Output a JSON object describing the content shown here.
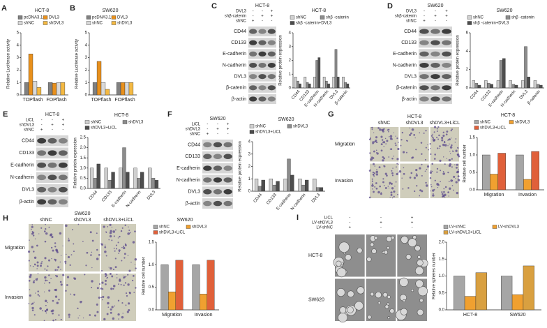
{
  "panels": [
    {
      "letter": "A"
    },
    {
      "letter": "B"
    },
    {
      "letter": "C",
      "title": "HCT-8",
      "conditions": [
        {
          "name": "DVL3",
          "signs": [
            "-",
            "-",
            "+"
          ]
        },
        {
          "name": "shβ-catenin",
          "signs": [
            "-",
            "+",
            "+"
          ]
        },
        {
          "name": "shNC",
          "signs": [
            "+",
            "-",
            "-"
          ]
        }
      ],
      "bands": [
        "CD44",
        "CD133",
        "E-cadherin",
        "N-cadherin",
        "DVL3",
        "β-catenin",
        "β-actin"
      ]
    },
    {
      "letter": "D",
      "title": "SW620",
      "conditions": [
        {
          "name": "DVL3",
          "signs": [
            "-",
            "-",
            "+"
          ]
        },
        {
          "name": "shβ-catenin",
          "signs": [
            "-",
            "+",
            "+"
          ]
        },
        {
          "name": "shNC",
          "signs": [
            "+",
            "-",
            "-"
          ]
        }
      ],
      "bands": [
        "CD44",
        "CD133",
        "E-cadherin",
        "N-cadherin",
        "DVL3",
        "β-catenin",
        "β-actin"
      ]
    },
    {
      "letter": "E",
      "title": "HCT-8",
      "conditions": [
        {
          "name": "LiCL",
          "signs": [
            "-",
            "-",
            "+"
          ]
        },
        {
          "name": "shDVL3",
          "signs": [
            "-",
            "+",
            "+"
          ]
        },
        {
          "name": "shNC",
          "signs": [
            "+",
            "-",
            "-"
          ]
        }
      ],
      "bands": [
        "CD44",
        "CD133",
        "E-cadherin",
        "N-cadherin",
        "DVL3",
        "β-actin"
      ]
    },
    {
      "letter": "F",
      "title": "SW620",
      "conditions": [
        {
          "name": "LiCL",
          "signs": [
            "-",
            "-",
            "+"
          ]
        },
        {
          "name": "shDVL3",
          "signs": [
            "-",
            "+",
            "+"
          ]
        },
        {
          "name": "shNC",
          "signs": [
            "+",
            "-",
            "-"
          ]
        }
      ],
      "bands": [
        "CD44",
        "CD133",
        "E-cadherin",
        "N-cadherin",
        "DVL3",
        "β-actin"
      ]
    },
    {
      "letter": "G",
      "title": "HCT-8",
      "columns": [
        "shNC",
        "shDVL3",
        "shDVL3+LiCL"
      ],
      "rows": [
        "Migration",
        "Invasion"
      ]
    },
    {
      "letter": "H",
      "title": "SW620",
      "columns": [
        "shNC",
        "shDVL3",
        "shDVL3+LiCL"
      ],
      "rows": [
        "Migration",
        "Invasion"
      ]
    },
    {
      "letter": "I",
      "conditions": [
        {
          "name": "LiCL",
          "signs": [
            "-",
            "-",
            "+"
          ]
        },
        {
          "name": "LV-shDVL3",
          "signs": [
            "-",
            "+",
            "+"
          ]
        },
        {
          "name": "LV-shNC",
          "signs": [
            "+",
            "-",
            "-"
          ]
        }
      ],
      "rows": [
        "HCT-8",
        "SW620"
      ]
    }
  ],
  "chart_data": [
    {
      "type": "bar",
      "title": "HCT-8",
      "y_label": "Relative Luciferase activity",
      "categories": [
        "TOPflash",
        "FOPflash"
      ],
      "series": [
        {
          "name": "pcDNA3.1",
          "color": "#808080",
          "values": [
            1,
            1
          ]
        },
        {
          "name": "DVL3",
          "color": "#e8901c",
          "values": [
            3.3,
            0.95
          ]
        },
        {
          "name": "shNC",
          "color": "#d9d9d9",
          "values": [
            1.1,
            1
          ]
        },
        {
          "name": "shDVL3",
          "color": "#f4b942",
          "values": [
            0.6,
            1
          ]
        }
      ],
      "ylim": [
        0,
        5
      ],
      "yticks": [
        0,
        1,
        2,
        3,
        4,
        5
      ]
    },
    {
      "type": "bar",
      "title": "SW620",
      "y_label": "Relative Luciferase activity",
      "categories": [
        "TOPflash",
        "FOPflash"
      ],
      "series": [
        {
          "name": "pcDNA3.1",
          "color": "#808080",
          "values": [
            1,
            1
          ]
        },
        {
          "name": "DVL3",
          "color": "#e8901c",
          "values": [
            2.7,
            1
          ]
        },
        {
          "name": "shNC",
          "color": "#d9d9d9",
          "values": [
            1,
            1
          ]
        },
        {
          "name": "shDVL3",
          "color": "#f4b942",
          "values": [
            0.45,
            1
          ]
        }
      ],
      "ylim": [
        0,
        5
      ],
      "yticks": [
        0,
        1,
        2,
        3,
        4,
        5
      ]
    },
    {
      "type": "bar",
      "title": "HCT-8",
      "y_label": "Relative protein expression",
      "categories": [
        "CD44",
        "CD133",
        "E-cadherin",
        "N-cadherin",
        "DVL3",
        "β-catenin"
      ],
      "series": [
        {
          "name": "shNC",
          "color": "#d0d0d0",
          "values": [
            0.8,
            0.8,
            0.8,
            0.8,
            0.8,
            0.8
          ]
        },
        {
          "name": "shβ -catenin",
          "color": "#8c8c8c",
          "values": [
            0.5,
            0.4,
            2.0,
            0.5,
            2.8,
            0.4
          ]
        },
        {
          "name": "shβ -catenin+DVL3",
          "color": "#4d4d4d",
          "values": [
            0.3,
            0.3,
            2.2,
            0.3,
            0.8,
            0.3
          ]
        }
      ],
      "ylim": [
        0,
        4
      ],
      "yticks": [
        0,
        1,
        2,
        3,
        4
      ]
    },
    {
      "type": "bar",
      "title": "SW620",
      "y_label": "Relative protein expression",
      "categories": [
        "CD44",
        "CD133",
        "E-cadherin",
        "N-cadherin",
        "DVL3",
        "β-catenin"
      ],
      "series": [
        {
          "name": "shNC",
          "color": "#d0d0d0",
          "values": [
            0.8,
            0.8,
            0.8,
            0.8,
            0.8,
            0.8
          ]
        },
        {
          "name": "shβ -catenin",
          "color": "#8c8c8c",
          "values": [
            0.5,
            0.5,
            3.0,
            0.4,
            4.5,
            0.4
          ]
        },
        {
          "name": "shβ -catenin+DVL3",
          "color": "#4d4d4d",
          "values": [
            0.3,
            0.4,
            3.2,
            0.3,
            1.2,
            0.3
          ]
        }
      ],
      "ylim": [
        0,
        6
      ],
      "yticks": [
        0,
        2,
        4,
        6
      ]
    },
    {
      "type": "bar",
      "title": "HCT-8",
      "y_label": "Relative protein expression",
      "categories": [
        "CD44",
        "CD133",
        "E-cadherin",
        "N-cadherin",
        "DVL3"
      ],
      "series": [
        {
          "name": "shNC",
          "color": "#d0d0d0",
          "values": [
            1,
            1,
            1,
            1,
            1
          ]
        },
        {
          "name": "shDVL3",
          "color": "#8c8c8c",
          "values": [
            0.5,
            0.4,
            2.0,
            0.5,
            0.5
          ]
        },
        {
          "name": "shDVL3+LiCL",
          "color": "#4d4d4d",
          "values": [
            1.2,
            0.8,
            0.8,
            0.8,
            0.4
          ]
        }
      ],
      "ylim": [
        0,
        2.5
      ],
      "yticks": [
        {
          "value": 0,
          "label": "0.0"
        },
        0.5,
        {
          "value": 1,
          "label": "1.0"
        },
        1.5,
        {
          "value": 2,
          "label": "2.0"
        },
        2.5
      ]
    },
    {
      "type": "bar",
      "title": "SW620",
      "y_label": "Relative protein expression",
      "categories": [
        "CD44",
        "CD133",
        "E-cadherin",
        "N-cadherin",
        "DVL3"
      ],
      "series": [
        {
          "name": "shNC",
          "color": "#d0d0d0",
          "values": [
            1,
            1,
            1,
            1,
            1
          ]
        },
        {
          "name": "shDVL3",
          "color": "#8c8c8c",
          "values": [
            0.4,
            0.5,
            2.6,
            0.5,
            0.3
          ]
        },
        {
          "name": "shDVL3+LiCL",
          "color": "#4d4d4d",
          "values": [
            0.9,
            0.8,
            1.3,
            0.9,
            0.3
          ]
        }
      ],
      "ylim": [
        0,
        4
      ],
      "yticks": [
        0,
        1,
        2,
        3,
        4
      ]
    },
    {
      "type": "bar",
      "title": "HCT-8",
      "y_label": "Relative cell number",
      "categories": [
        "Migration",
        "Invasion"
      ],
      "series": [
        {
          "name": "shNC",
          "color": "#a6a6a6",
          "values": [
            1,
            1
          ]
        },
        {
          "name": "shDVL3",
          "color": "#f0a030",
          "values": [
            0.45,
            0.3
          ]
        },
        {
          "name": "shDVL3+LiCL",
          "color": "#e0603a",
          "values": [
            1.05,
            1.1
          ]
        }
      ],
      "ylim": [
        0,
        1.5
      ],
      "yticks": [
        {
          "value": 0,
          "label": "0.0"
        },
        0.5,
        {
          "value": 1,
          "label": "1.0"
        },
        1.5
      ]
    },
    {
      "type": "bar",
      "title": "SW620",
      "y_label": "Relative cell number",
      "categories": [
        "Migration",
        "Invasion"
      ],
      "series": [
        {
          "name": "shNC",
          "color": "#a6a6a6",
          "values": [
            1,
            1
          ]
        },
        {
          "name": "shDVL3",
          "color": "#f0a030",
          "values": [
            0.4,
            0.35
          ]
        },
        {
          "name": "shDVL3+LiCL",
          "color": "#e0603a",
          "values": [
            1.1,
            1.1
          ]
        }
      ],
      "ylim": [
        0,
        1.5
      ],
      "yticks": [
        {
          "value": 0,
          "label": "0.0"
        },
        0.5,
        {
          "value": 1,
          "label": "1.0"
        },
        1.5
      ]
    },
    {
      "type": "bar",
      "y_label": "Relative spheres number",
      "categories": [
        "HCT-8",
        "SW620"
      ],
      "series": [
        {
          "name": "LV-shNC",
          "color": "#a6a6a6",
          "values": [
            1,
            1
          ]
        },
        {
          "name": "LV-shDVL3",
          "color": "#f0a030",
          "values": [
            0.4,
            0.45
          ]
        },
        {
          "name": "LV-shDVL3+LiCL",
          "color": "#d9a040",
          "values": [
            1.1,
            1.3
          ]
        }
      ],
      "ylim": [
        0,
        2
      ],
      "yticks": [
        {
          "value": 0,
          "label": "0.0"
        },
        0.5,
        {
          "value": 1,
          "label": "1.0"
        },
        1.5,
        {
          "value": 2,
          "label": "2.0"
        }
      ]
    }
  ]
}
